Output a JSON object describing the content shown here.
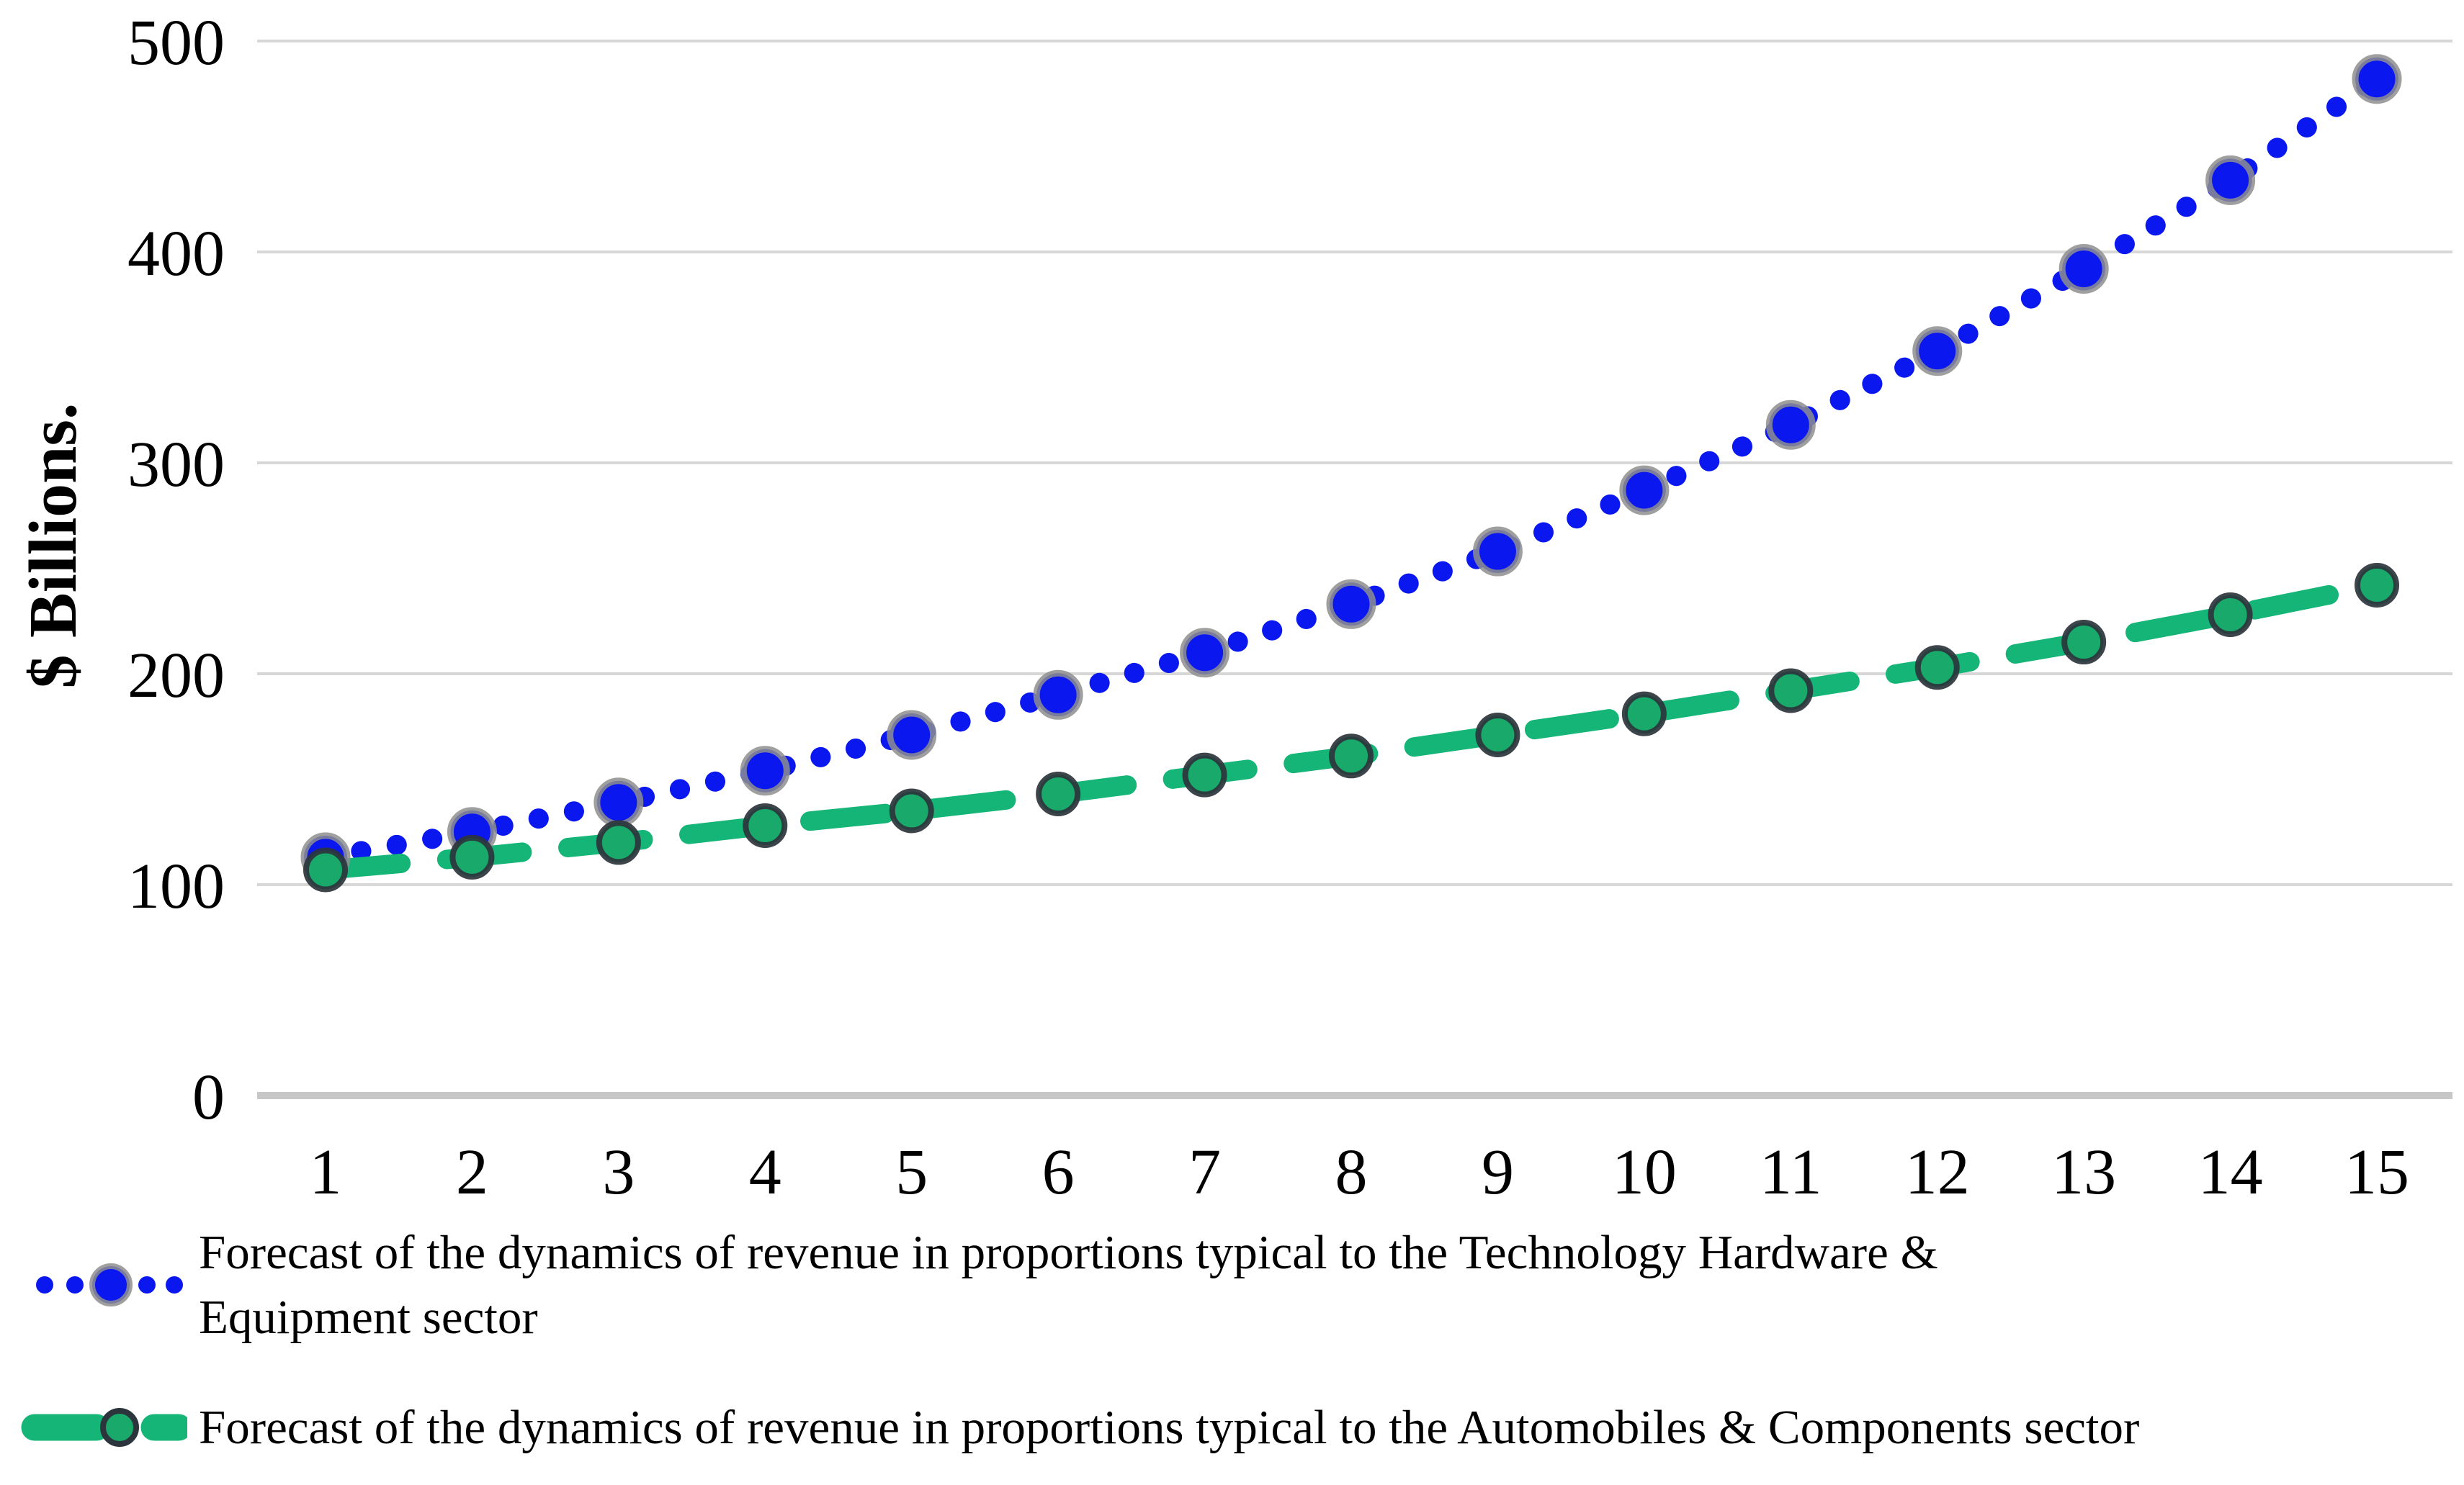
{
  "chart_data": {
    "type": "line",
    "title": "",
    "xlabel": "",
    "ylabel": "$ Billions.",
    "x": [
      1,
      2,
      3,
      4,
      5,
      6,
      7,
      8,
      9,
      10,
      11,
      12,
      13,
      14,
      15
    ],
    "ylim": [
      0,
      500
    ],
    "yticks": [
      0,
      100,
      200,
      300,
      400,
      500
    ],
    "grid": "horizontal",
    "legend_position": "bottom-left",
    "background": "#ffffff",
    "series": [
      {
        "name": "Forecast of the dynamics of revenue in proportions typical to the Technology Hardware & Equipment sector",
        "name_lines": [
          "Forecast of the dynamics of revenue in proportions typical to the Technology Hardware &",
          "Equipment sector"
        ],
        "style": "dotted",
        "color": "#0a17ee",
        "marker": "circle",
        "marker_fill": "#0a17ee",
        "marker_outline": "#8e8e8e",
        "values": [
          113,
          125,
          139,
          154,
          171,
          190,
          210,
          233,
          258,
          287,
          318,
          353,
          392,
          434,
          482
        ]
      },
      {
        "name": "Forecast of the dynamics of revenue in proportions typical to the Automobiles & Components sector",
        "name_lines": [
          "Forecast of the dynamics of revenue in proportions typical to the Automobiles & Components sector"
        ],
        "style": "dashed",
        "color": "#14b577",
        "marker": "circle",
        "marker_fill": "#18a96b",
        "marker_outline": "#2d353c",
        "values": [
          107,
          113,
          120,
          128,
          135,
          143,
          152,
          161,
          171,
          181,
          192,
          203,
          215,
          228,
          242
        ]
      }
    ],
    "colors": {
      "gridline": "#d7d7d7",
      "zero_line": "#c7c7c7",
      "tick_text": "#000000"
    }
  }
}
